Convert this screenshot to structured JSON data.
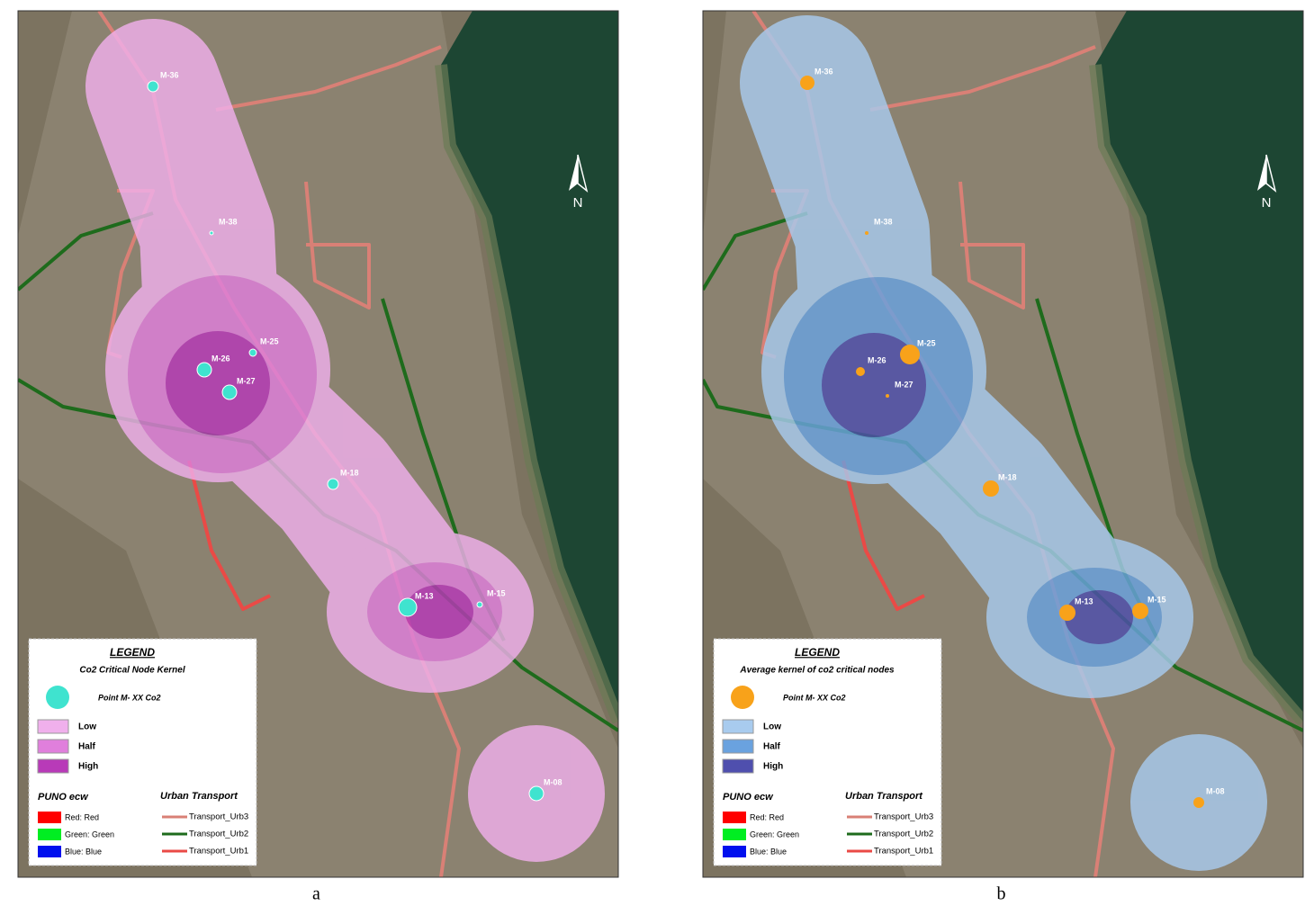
{
  "panels": [
    {
      "caption": "a",
      "north": "N",
      "nodes": [
        "M-36",
        "M-38",
        "M-25",
        "M-26",
        "M-27",
        "M-18",
        "M-13",
        "M-15",
        "M-08"
      ],
      "legend": {
        "title": "LEGEND",
        "subtitle": "Co2 Critical Node Kernel",
        "point": "Point M- XX Co2",
        "classes": [
          "Low",
          "Half",
          "High"
        ],
        "raster_title": "PUNO ecw",
        "raster_bands": [
          "Red:  Red",
          "Green: Green",
          "Blue:  Blue"
        ],
        "transport_title": "Urban Transport",
        "transport_lines": [
          "Transport_Urb3",
          "Transport_Urb2",
          "Transport_Urb1"
        ]
      }
    },
    {
      "caption": "b",
      "north": "N",
      "nodes": [
        "M-36",
        "M-38",
        "M-25",
        "M-26",
        "M-27",
        "M-18",
        "M-13",
        "M-15",
        "M-08"
      ],
      "legend": {
        "title": "LEGEND",
        "subtitle": "Average kernel of co2 critical nodes",
        "point": "Point M- XX Co2",
        "classes": [
          "Low",
          "Half",
          "High"
        ],
        "raster_title": "PUNO ecw",
        "raster_bands": [
          "Red:  Red",
          "Green: Green",
          "Blue:  Blue"
        ],
        "transport_title": "Urban Transport",
        "transport_lines": [
          "Transport_Urb3",
          "Transport_Urb2",
          "Transport_Urb1"
        ]
      }
    }
  ]
}
